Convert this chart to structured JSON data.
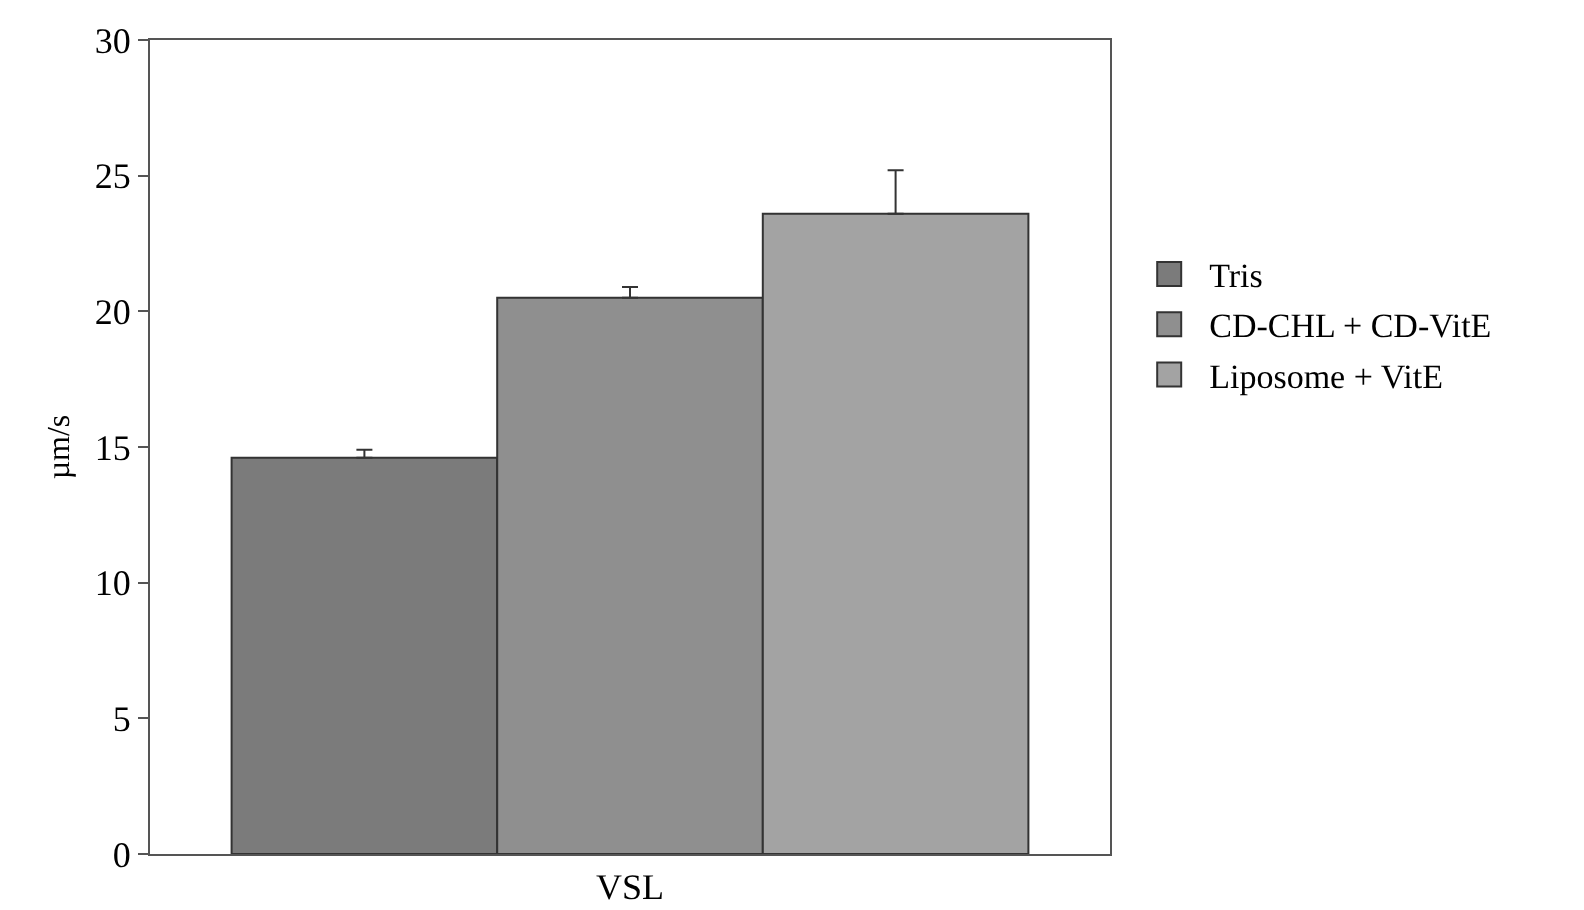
{
  "chart_data": {
    "type": "bar",
    "categories": [
      "VSL"
    ],
    "ylabel": "µm/s",
    "ylim": [
      0,
      30
    ],
    "yticks": [
      0,
      5,
      10,
      15,
      20,
      25,
      30
    ],
    "grid": false,
    "legend": "right",
    "series": [
      {
        "name": "Tris",
        "color": "#7b7b7b",
        "values": [
          14.6
        ],
        "errors": [
          [
            14.6,
            14.9
          ]
        ]
      },
      {
        "name": "CD-CHL + CD-VitE",
        "color": "#8f8f8f",
        "values": [
          20.5
        ],
        "errors": [
          [
            20.5,
            20.9
          ]
        ]
      },
      {
        "name": "Liposome + VitE",
        "color": "#a3a3a3",
        "values": [
          23.6
        ],
        "errors": [
          [
            23.6,
            25.2
          ]
        ]
      }
    ]
  }
}
